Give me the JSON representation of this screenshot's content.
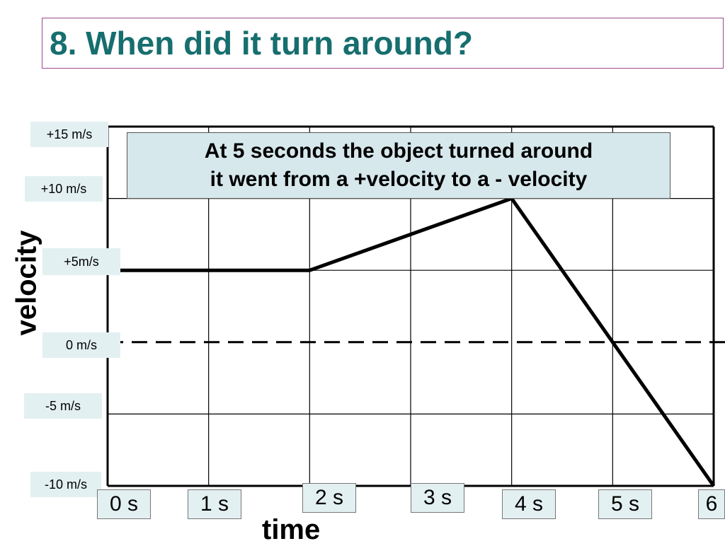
{
  "slide": {
    "title": "8. When did it turn around?"
  },
  "chart_data": {
    "type": "line",
    "xlabel": "time",
    "ylabel": "velocity",
    "x_ticks": [
      "0 s",
      "1 s",
      "2 s",
      "3 s",
      "4 s",
      "5 s",
      "6"
    ],
    "y_ticks": [
      "+15 m/s",
      "+10 m/s",
      "+5m/s",
      "0 m/s",
      "-5 m/s",
      "-10 m/s"
    ],
    "xlim": [
      0,
      6
    ],
    "ylim": [
      -10,
      15
    ],
    "grid": true,
    "zero_line": "dashed",
    "series": [
      {
        "x": [
          0,
          2,
          4,
          6
        ],
        "y": [
          5,
          5,
          10,
          -10
        ]
      }
    ],
    "annotation": {
      "lines": [
        "At 5 seconds the object turned around",
        "it went from a +velocity to a - velocity"
      ]
    }
  }
}
